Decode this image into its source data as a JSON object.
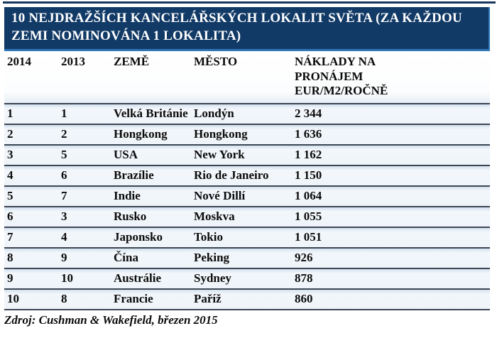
{
  "chart_data": {
    "type": "table",
    "title": "10 NEJDRAŽŠÍCH KANCELÁŘSKÝCH LOKALIT SVĚTA (ZA KAŽDOU ZEMI NOMINOVÁNA 1 LOKALITA)",
    "columns": [
      "2014",
      "2013",
      "ZEMĚ",
      "MĚSTO",
      "NÁKLADY NA PRONÁJEM EUR/M2/ROČNĚ"
    ],
    "rows": [
      [
        "1",
        "1",
        "Velká Británie",
        "Londýn",
        "2 344"
      ],
      [
        "2",
        "2",
        "Hongkong",
        "Hongkong",
        "1 636"
      ],
      [
        "3",
        "5",
        "USA",
        "New York",
        "1 162"
      ],
      [
        "4",
        "6",
        "Brazílie",
        "Rio de Janeiro",
        "1 150"
      ],
      [
        "5",
        "7",
        "Indie",
        "Nové Dillí",
        "1 064"
      ],
      [
        "6",
        "3",
        "Rusko",
        "Moskva",
        "1 055"
      ],
      [
        "7",
        "4",
        "Japonsko",
        "Tokio",
        "1 051"
      ],
      [
        "8",
        "9",
        "Čína",
        "Peking",
        "926"
      ],
      [
        "9",
        "10",
        "Austrálie",
        "Sydney",
        "878"
      ],
      [
        "10",
        "8",
        "Francie",
        "Paříž",
        "860"
      ]
    ],
    "source": "Zdroj: Cushman & Wakefield, březen 2015",
    "layout_hints": {
      "grid": "horizontal-rules-only",
      "header_position": "top"
    }
  },
  "colors": {
    "title_background": "#123a66",
    "title_text": "#ffffff",
    "title_edge_highlight": "#2e75b6",
    "top_rule": "#17375e",
    "row_separator": "#3d4653",
    "row_tint_top": "#d3e1ef",
    "row_background": "#eef4f9",
    "body_text": "#0b0b0b",
    "page_background": "#ffffff"
  }
}
